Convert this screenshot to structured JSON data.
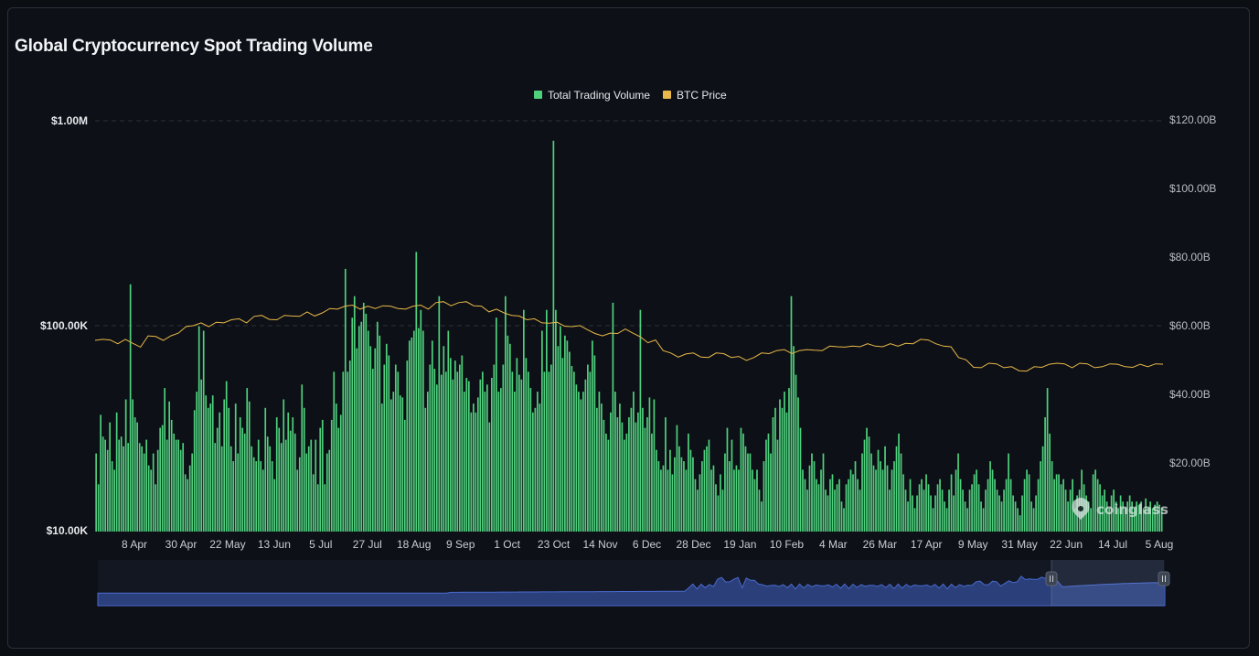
{
  "title": "Global Cryptocurrency Spot Trading Volume",
  "brand": "coinglass",
  "legend": [
    {
      "label": "Total Trading Volume",
      "color": "#4fd07d"
    },
    {
      "label": "BTC Price",
      "color": "#e9b84a"
    }
  ],
  "colors": {
    "volume": "#4fd07d",
    "price": "#e9b84a",
    "navigator": "#3b5fc4",
    "grid": "#2a2f38",
    "background": "#0d1016"
  },
  "chart_data": {
    "type": "bar",
    "title": "Global Cryptocurrency Spot Trading Volume",
    "left_axis": {
      "scale": "log",
      "ticks": [
        "$10.00K",
        "$100.00K",
        "$1.00M"
      ],
      "range": [
        10000,
        1000000
      ]
    },
    "right_axis": {
      "scale": "linear",
      "ticks": [
        "$20.00B",
        "$40.00B",
        "$60.00B",
        "$80.00B",
        "$100.00B",
        "$120.00B"
      ],
      "range": [
        0,
        120
      ]
    },
    "x_ticks": [
      "8 Apr",
      "30 Apr",
      "22 May",
      "13 Jun",
      "5 Jul",
      "27 Jul",
      "18 Aug",
      "9 Sep",
      "1 Oct",
      "23 Oct",
      "14 Nov",
      "6 Dec",
      "28 Dec",
      "19 Jan",
      "10 Feb",
      "4 Mar",
      "26 Mar",
      "17 Apr",
      "9 May",
      "31 May",
      "22 Jun",
      "14 Jul",
      "5 Aug"
    ],
    "grid": "horizontal-dashed",
    "legend_position": "top-center",
    "series": [
      {
        "name": "Total Trading Volume",
        "kind": "bar",
        "axis": "left",
        "values": [
          24000,
          17000,
          37000,
          29000,
          28000,
          25000,
          34000,
          22000,
          20000,
          38000,
          28000,
          29000,
          26000,
          44000,
          27000,
          160000,
          44000,
          36000,
          34000,
          27000,
          26000,
          24000,
          28000,
          21000,
          20000,
          24000,
          17000,
          25000,
          32000,
          33000,
          50000,
          28000,
          43000,
          35000,
          30000,
          28000,
          28000,
          25000,
          27000,
          19000,
          18000,
          21000,
          24000,
          39000,
          48000,
          100000,
          55000,
          95000,
          46000,
          40000,
          42000,
          46000,
          27000,
          32000,
          38000,
          26000,
          44000,
          54000,
          40000,
          26000,
          22000,
          42000,
          24000,
          36000,
          32000,
          30000,
          50000,
          43000,
          26000,
          23000,
          22000,
          28000,
          22000,
          20000,
          40000,
          29000,
          26000,
          22000,
          18000,
          36000,
          32000,
          27000,
          44000,
          28000,
          38000,
          31000,
          36000,
          30000,
          20000,
          23000,
          52000,
          40000,
          24000,
          26000,
          28000,
          19000,
          28000,
          17000,
          32000,
          35000,
          17000,
          24000,
          25000,
          35000,
          60000,
          42000,
          32000,
          37000,
          60000,
          190000,
          60000,
          68000,
          110000,
          140000,
          78000,
          100000,
          105000,
          130000,
          115000,
          95000,
          80000,
          62000,
          78000,
          105000,
          90000,
          42000,
          65000,
          82000,
          72000,
          44000,
          48000,
          65000,
          60000,
          46000,
          45000,
          35000,
          68000,
          85000,
          88000,
          95000,
          230000,
          98000,
          120000,
          95000,
          40000,
          48000,
          65000,
          85000,
          62000,
          52000,
          140000,
          58000,
          80000,
          60000,
          95000,
          70000,
          55000,
          68000,
          60000,
          65000,
          72000,
          48000,
          56000,
          54000,
          38000,
          42000,
          38000,
          45000,
          55000,
          60000,
          48000,
          52000,
          34000,
          56000,
          65000,
          110000,
          48000,
          50000,
          65000,
          140000,
          90000,
          82000,
          60000,
          48000,
          70000,
          58000,
          55000,
          120000,
          70000,
          60000,
          50000,
          38000,
          40000,
          48000,
          42000,
          95000,
          60000,
          120000,
          60000,
          65000,
          800000,
          120000,
          80000,
          100000,
          70000,
          90000,
          85000,
          75000,
          64000,
          60000,
          52000,
          48000,
          44000,
          48000,
          55000,
          65000,
          60000,
          85000,
          72000,
          40000,
          48000,
          42000,
          35000,
          30000,
          28000,
          38000,
          130000,
          48000,
          36000,
          42000,
          34000,
          28000,
          30000,
          36000,
          40000,
          48000,
          34000,
          38000,
          120000,
          40000,
          32000,
          36000,
          45000,
          30000,
          44000,
          25000,
          22000,
          20000,
          21000,
          36000,
          20000,
          25000,
          19000,
          23000,
          33000,
          26000,
          23000,
          22000,
          20000,
          30000,
          25000,
          23000,
          18000,
          16000,
          19000,
          22000,
          25000,
          26000,
          28000,
          20000,
          21000,
          17000,
          15000,
          19000,
          16000,
          24000,
          32000,
          22000,
          28000,
          20000,
          21000,
          20000,
          32000,
          30000,
          26000,
          24000,
          24000,
          20000,
          18000,
          20000,
          16000,
          14000,
          22000,
          28000,
          30000,
          24000,
          36000,
          40000,
          28000,
          44000,
          40000,
          48000,
          38000,
          50000,
          140000,
          80000,
          58000,
          45000,
          32000,
          20000,
          18000,
          16000,
          21000,
          24000,
          22000,
          18000,
          17000,
          20000,
          24000,
          16000,
          15000,
          18000,
          19000,
          16000,
          17000,
          18000,
          14000,
          13000,
          17000,
          18000,
          20000,
          19000,
          22000,
          18000,
          16000,
          24000,
          28000,
          32000,
          29000,
          24000,
          21000,
          20000,
          25000,
          22000,
          20000,
          26000,
          21000,
          16000,
          20000,
          22000,
          26000,
          30000,
          24000,
          19000,
          16000,
          14000,
          18000,
          15000,
          13000,
          15000,
          17000,
          18000,
          16000,
          19000,
          17000,
          15000,
          13000,
          15000,
          17000,
          18000,
          16000,
          14000,
          13000,
          16000,
          19000,
          15000,
          20000,
          24000,
          18000,
          16000,
          14000,
          13000,
          16000,
          17000,
          19000,
          20000,
          17000,
          14000,
          13000,
          16000,
          18000,
          22000,
          20000,
          18000,
          16000,
          15000,
          14000,
          16000,
          18000,
          24000,
          18000,
          15000,
          14000,
          13000,
          12000,
          15000,
          18000,
          20000,
          19000,
          14000,
          13000,
          15000,
          18000,
          22000,
          26000,
          36000,
          50000,
          30000,
          22000,
          18000,
          19000,
          19000,
          17000,
          18000,
          16000,
          14000,
          16000,
          18000,
          13000,
          15000,
          16000,
          20000,
          17000,
          15000,
          14000,
          13000,
          19000,
          20000,
          18000,
          17000,
          15000,
          16000,
          14000,
          13000,
          15000,
          16000,
          14000,
          13000,
          15000,
          14000,
          13000,
          14000,
          15000,
          14000,
          13000,
          14000,
          13500,
          14000,
          13000,
          14500,
          13000,
          14000,
          13000,
          13500,
          14000,
          13500,
          13000
        ]
      },
      {
        "name": "BTC Price",
        "kind": "line",
        "axis": "right",
        "values": [
          56,
          56,
          56,
          55,
          56,
          55,
          54,
          57,
          57,
          56,
          57,
          58,
          60,
          60,
          61,
          60,
          61,
          61,
          62,
          62,
          61,
          63,
          63,
          62,
          62,
          63,
          63,
          63,
          64,
          63,
          64,
          65,
          65,
          66,
          66,
          65,
          66,
          65,
          66,
          66,
          65,
          65,
          66,
          66,
          65,
          67,
          67,
          66,
          67,
          67,
          66,
          66,
          64,
          65,
          64,
          63,
          63,
          62,
          62,
          61,
          61,
          61,
          60,
          60,
          60,
          59,
          58,
          57,
          58,
          58,
          59,
          58,
          57,
          55,
          56,
          53,
          52,
          51,
          52,
          52,
          51,
          51,
          52,
          52,
          51,
          51,
          50,
          51,
          52,
          52,
          53,
          53,
          52,
          53,
          53,
          53,
          53,
          54,
          54,
          54,
          54,
          54,
          55,
          54,
          54,
          55,
          54,
          55,
          55,
          56,
          56,
          55,
          54,
          54,
          51,
          50,
          48,
          48,
          49,
          49,
          48,
          48,
          47,
          47,
          48,
          48,
          49,
          49,
          49,
          48,
          49,
          49,
          48,
          48,
          49,
          49,
          48,
          48,
          49,
          48,
          49,
          49
        ]
      }
    ]
  }
}
